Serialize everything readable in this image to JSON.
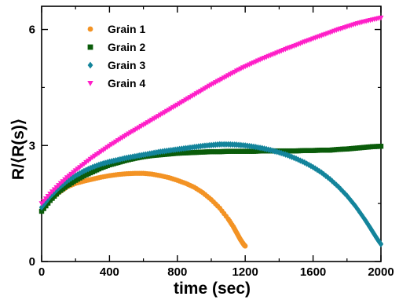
{
  "chart_data": {
    "type": "scatter",
    "title": "",
    "xlabel": "time (sec)",
    "ylabel": "R/⟨R(s)⟩",
    "xlim": [
      0,
      2000
    ],
    "ylim": [
      0,
      6.6
    ],
    "xticks": [
      0,
      400,
      800,
      1200,
      1600,
      2000
    ],
    "yticks": [
      0,
      3,
      6
    ],
    "legend_position": "top-left",
    "grid": false,
    "series": [
      {
        "name": "Grain 1",
        "color": "#f39324",
        "marker": "circle",
        "x": [
          0,
          50,
          100,
          150,
          200,
          250,
          300,
          350,
          400,
          450,
          500,
          550,
          600,
          650,
          700,
          750,
          800,
          850,
          900,
          950,
          1000,
          1050,
          1100,
          1130,
          1150,
          1170,
          1185,
          1195,
          1200
        ],
        "y": [
          1.32,
          1.58,
          1.78,
          1.93,
          2.02,
          2.08,
          2.13,
          2.18,
          2.22,
          2.25,
          2.27,
          2.28,
          2.28,
          2.26,
          2.22,
          2.17,
          2.1,
          2.02,
          1.92,
          1.78,
          1.6,
          1.38,
          1.1,
          0.9,
          0.74,
          0.58,
          0.48,
          0.42,
          0.4
        ]
      },
      {
        "name": "Grain 2",
        "color": "#0a5c0a",
        "marker": "square",
        "x": [
          0,
          50,
          100,
          150,
          200,
          250,
          300,
          350,
          400,
          450,
          500,
          550,
          600,
          650,
          700,
          750,
          800,
          850,
          900,
          950,
          1000,
          1050,
          1100,
          1150,
          1200,
          1250,
          1300,
          1350,
          1400,
          1450,
          1500,
          1550,
          1600,
          1650,
          1700,
          1750,
          1800,
          1850,
          1900,
          1950,
          2000
        ],
        "y": [
          1.3,
          1.58,
          1.8,
          1.96,
          2.1,
          2.22,
          2.32,
          2.42,
          2.5,
          2.56,
          2.62,
          2.67,
          2.71,
          2.74,
          2.76,
          2.78,
          2.8,
          2.81,
          2.82,
          2.83,
          2.84,
          2.84,
          2.85,
          2.85,
          2.85,
          2.85,
          2.86,
          2.86,
          2.86,
          2.86,
          2.86,
          2.87,
          2.87,
          2.88,
          2.88,
          2.9,
          2.91,
          2.93,
          2.95,
          2.97,
          2.98
        ]
      },
      {
        "name": "Grain 3",
        "color": "#13849b",
        "marker": "diamond",
        "x": [
          0,
          50,
          100,
          150,
          200,
          250,
          300,
          350,
          400,
          450,
          500,
          550,
          600,
          650,
          700,
          750,
          800,
          850,
          900,
          950,
          1000,
          1050,
          1100,
          1150,
          1200,
          1250,
          1300,
          1350,
          1400,
          1450,
          1500,
          1550,
          1600,
          1650,
          1700,
          1750,
          1800,
          1850,
          1900,
          1930,
          1950,
          1970,
          1985,
          1995,
          2000
        ],
        "y": [
          1.4,
          1.68,
          1.9,
          2.08,
          2.22,
          2.34,
          2.44,
          2.52,
          2.58,
          2.63,
          2.68,
          2.72,
          2.76,
          2.8,
          2.84,
          2.87,
          2.9,
          2.93,
          2.96,
          2.99,
          3.01,
          3.03,
          3.03,
          3.02,
          3.0,
          2.97,
          2.93,
          2.88,
          2.82,
          2.75,
          2.66,
          2.56,
          2.44,
          2.3,
          2.13,
          1.93,
          1.7,
          1.43,
          1.12,
          0.92,
          0.78,
          0.64,
          0.54,
          0.48,
          0.45
        ]
      },
      {
        "name": "Grain 4",
        "color": "#ff1fc8",
        "marker": "triangle-down",
        "x": [
          0,
          50,
          100,
          150,
          200,
          250,
          300,
          350,
          400,
          450,
          500,
          550,
          600,
          650,
          700,
          750,
          800,
          850,
          900,
          950,
          1000,
          1050,
          1100,
          1150,
          1200,
          1250,
          1300,
          1350,
          1400,
          1450,
          1500,
          1550,
          1600,
          1650,
          1700,
          1750,
          1800,
          1850,
          1900,
          1950,
          2000
        ],
        "y": [
          1.5,
          1.75,
          1.97,
          2.17,
          2.35,
          2.52,
          2.69,
          2.84,
          2.99,
          3.13,
          3.27,
          3.4,
          3.53,
          3.66,
          3.79,
          3.92,
          4.05,
          4.18,
          4.31,
          4.44,
          4.57,
          4.69,
          4.81,
          4.93,
          5.04,
          5.14,
          5.24,
          5.33,
          5.42,
          5.51,
          5.59,
          5.68,
          5.76,
          5.84,
          5.92,
          6.0,
          6.07,
          6.14,
          6.2,
          6.25,
          6.3
        ]
      }
    ]
  }
}
